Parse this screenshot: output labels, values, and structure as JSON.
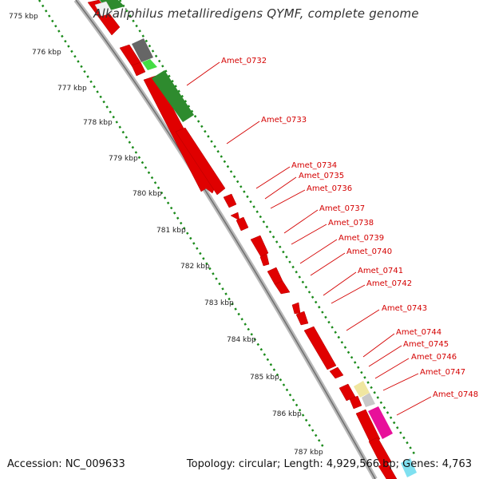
{
  "title": "Alkaliphilus metalliredigens QYMF, complete genome",
  "footer": {
    "accession": "Accession: NC_009633",
    "topology": "Topology: circular; Length: 4,929,566 bp; Genes: 4,763"
  },
  "ticks": [
    "775 kbp",
    "776 kbp",
    "777 kbp",
    "778 kbp",
    "779 kbp",
    "780 kbp",
    "781 kbp",
    "782 kbp",
    "783 kbp",
    "784 kbp",
    "785 kbp",
    "786 kbp",
    "787 kbp"
  ],
  "gene_labels": [
    "Amet_0732",
    "Amet_0733",
    "Amet_0734",
    "Amet_0735",
    "Amet_0736",
    "Amet_0737",
    "Amet_0738",
    "Amet_0739",
    "Amet_0740",
    "Amet_0741",
    "Amet_0742",
    "Amet_0743",
    "Amet_0744",
    "Amet_0745",
    "Amet_0746",
    "Amet_0747",
    "Amet_0748"
  ],
  "colors": {
    "gene_red": "#e00000",
    "label_red": "#d40000",
    "green_dark": "#2e8b2e",
    "green_light": "#44dd44",
    "gray_dark": "#666666",
    "gray_light": "#c8c8c8",
    "yellow": "#f0e6a0",
    "magenta": "#e8109a",
    "cyan": "#7fe0f0",
    "dots": "#1a8a1a",
    "backbone": "#999999"
  }
}
